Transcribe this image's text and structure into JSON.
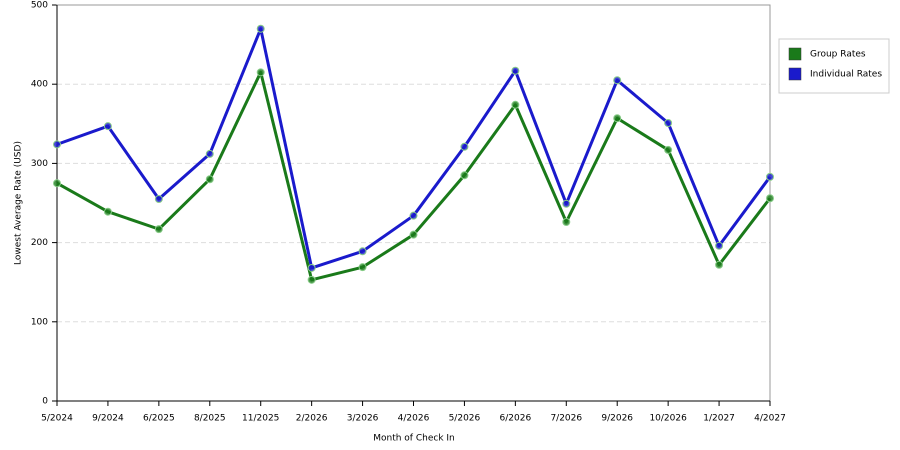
{
  "chart_data": {
    "type": "line",
    "x_label": "Month of Check In",
    "y_label": "Lowest Average Rate (USD)",
    "categories": [
      "5/2024",
      "9/2024",
      "6/2025",
      "8/2025",
      "11/2025",
      "2/2026",
      "3/2026",
      "4/2026",
      "5/2026",
      "6/2026",
      "7/2026",
      "9/2026",
      "10/2026",
      "1/2027",
      "4/2027"
    ],
    "series": [
      {
        "name": "Group Rates",
        "color": "#1a7a1a",
        "values": [
          275,
          239,
          217,
          280,
          415,
          153,
          169,
          210,
          285,
          374,
          226,
          357,
          317,
          172,
          256
        ]
      },
      {
        "name": "Individual Rates",
        "color": "#1a1acc",
        "values": [
          324,
          347,
          255,
          312,
          470,
          168,
          189,
          234,
          321,
          417,
          249,
          405,
          351,
          196,
          283
        ]
      }
    ],
    "ylim": [
      0,
      500
    ],
    "yticks": [
      0,
      100,
      200,
      300,
      400,
      500
    ],
    "grid": true,
    "legend": "right"
  }
}
